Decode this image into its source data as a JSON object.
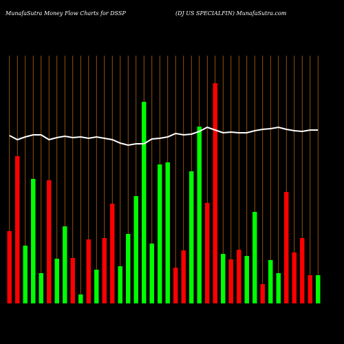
{
  "chart_data": {
    "type": "bar",
    "title": "MunafaSutra  Money Flow  Charts for DSSP",
    "subtitle": "(DJ US SPECIALFIN) MunafaSutra.com",
    "categories": [
      null,
      null,
      null,
      null,
      null,
      null,
      null,
      null,
      null,
      null,
      null,
      null,
      null,
      null,
      null,
      null,
      null,
      null,
      null,
      null,
      null,
      null,
      null,
      null,
      null,
      null,
      null,
      null,
      null,
      null,
      null,
      null,
      null,
      null,
      null,
      null,
      null,
      null,
      null,
      null
    ],
    "values": [
      105,
      214,
      84,
      181,
      44,
      179,
      65,
      112,
      66,
      13,
      93,
      49,
      95,
      145,
      54,
      101,
      156,
      293,
      87,
      202,
      205,
      52,
      77,
      192,
      257,
      146,
      320,
      72,
      64,
      78,
      69,
      133,
      28,
      63,
      44,
      162,
      74,
      95,
      41,
      41
    ],
    "colors": [
      "#ff0000",
      "#ff0000",
      "#00ff00",
      "#00ff00",
      "#00ff00",
      "#ff0000",
      "#00ff00",
      "#00ff00",
      "#ff0000",
      "#00ff00",
      "#ff0000",
      "#00ff00",
      "#ff0000",
      "#ff0000",
      "#00ff00",
      "#00ff00",
      "#00ff00",
      "#00ff00",
      "#00ff00",
      "#00ff00",
      "#00ff00",
      "#ff0000",
      "#ff0000",
      "#00ff00",
      "#00ff00",
      "#ff0000",
      "#ff0000",
      "#00ff00",
      "#ff0000",
      "#ff0000",
      "#00ff00",
      "#00ff00",
      "#ff0000",
      "#00ff00",
      "#00ff00",
      "#ff0000",
      "#ff0000",
      "#ff0000",
      "#ff0000",
      "#00ff00"
    ],
    "line": {
      "color": "#ffffff",
      "values": [
        244,
        238,
        242,
        245,
        245,
        238,
        241,
        243,
        241,
        242,
        240,
        242,
        240,
        238,
        233,
        230,
        232,
        232,
        239,
        240,
        242,
        247,
        245,
        246,
        250,
        256,
        252,
        248,
        249,
        248,
        248,
        251,
        253,
        254,
        256,
        253,
        251,
        250,
        252,
        252
      ]
    },
    "ylim": [
      0,
      360
    ],
    "grid": true,
    "grid_color": "#b8650f"
  }
}
